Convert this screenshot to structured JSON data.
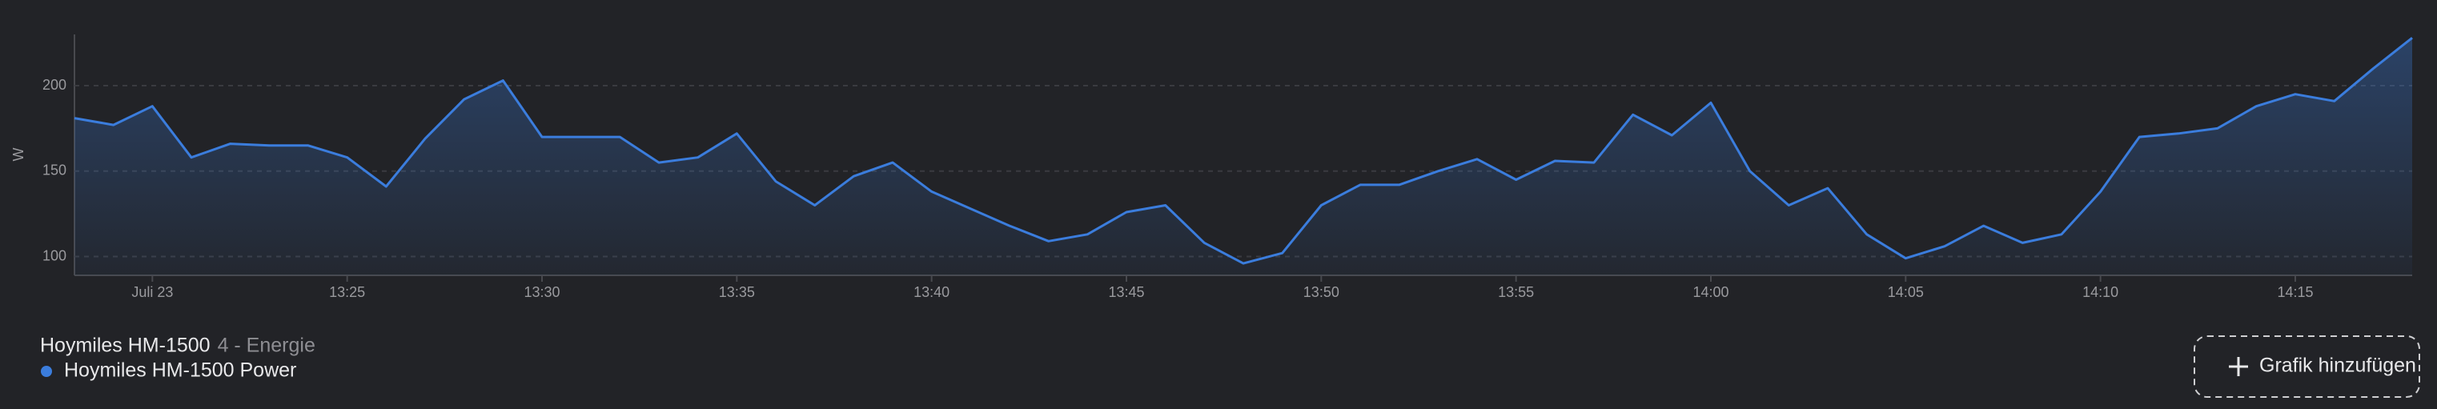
{
  "chart_data": {
    "type": "line",
    "title": "Hoymiles HM-1500",
    "subtitle": "4 - Energie",
    "y_label": "W",
    "x": [
      "13:18",
      "13:19",
      "13:20",
      "13:21",
      "13:22",
      "13:23",
      "13:24",
      "13:25",
      "13:26",
      "13:27",
      "13:28",
      "13:29",
      "13:30",
      "13:31",
      "13:32",
      "13:33",
      "13:34",
      "13:35",
      "13:36",
      "13:37",
      "13:38",
      "13:39",
      "13:40",
      "13:41",
      "13:42",
      "13:43",
      "13:44",
      "13:45",
      "13:46",
      "13:47",
      "13:48",
      "13:49",
      "13:50",
      "13:51",
      "13:52",
      "13:53",
      "13:54",
      "13:55",
      "13:56",
      "13:57",
      "13:58",
      "13:59",
      "14:00",
      "14:01",
      "14:02",
      "14:03",
      "14:04",
      "14:05",
      "14:06",
      "14:07",
      "14:08",
      "14:09",
      "14:10",
      "14:11",
      "14:12",
      "14:13",
      "14:14",
      "14:15",
      "14:16",
      "14:17",
      "14:18"
    ],
    "series": [
      {
        "name": "Hoymiles HM-1500 Power",
        "color": "#3b7ddd",
        "values": [
          181,
          177,
          188,
          158,
          166,
          165,
          165,
          158,
          141,
          169,
          192,
          203,
          170,
          170,
          170,
          155,
          158,
          172,
          144,
          130,
          147,
          155,
          138,
          128,
          118,
          109,
          113,
          126,
          130,
          108,
          96,
          102,
          130,
          142,
          142,
          150,
          157,
          145,
          156,
          155,
          183,
          171,
          190,
          150,
          130,
          140,
          113,
          99,
          106,
          118,
          108,
          113,
          138,
          170,
          172,
          175,
          188,
          195,
          191,
          210,
          228
        ]
      }
    ],
    "xlim": [
      "13:18",
      "14:18"
    ],
    "xticks": [
      {
        "value": "13:20",
        "label": "Juli 23"
      },
      "13:25",
      "13:30",
      "13:35",
      "13:40",
      "13:45",
      "13:50",
      "13:55",
      "14:00",
      "14:05",
      "14:10",
      "14:15"
    ],
    "ylim": [
      89,
      230
    ],
    "yticks": [
      100,
      150,
      200
    ],
    "grid": true
  },
  "button": {
    "label": "Grafik hinzufügen"
  }
}
